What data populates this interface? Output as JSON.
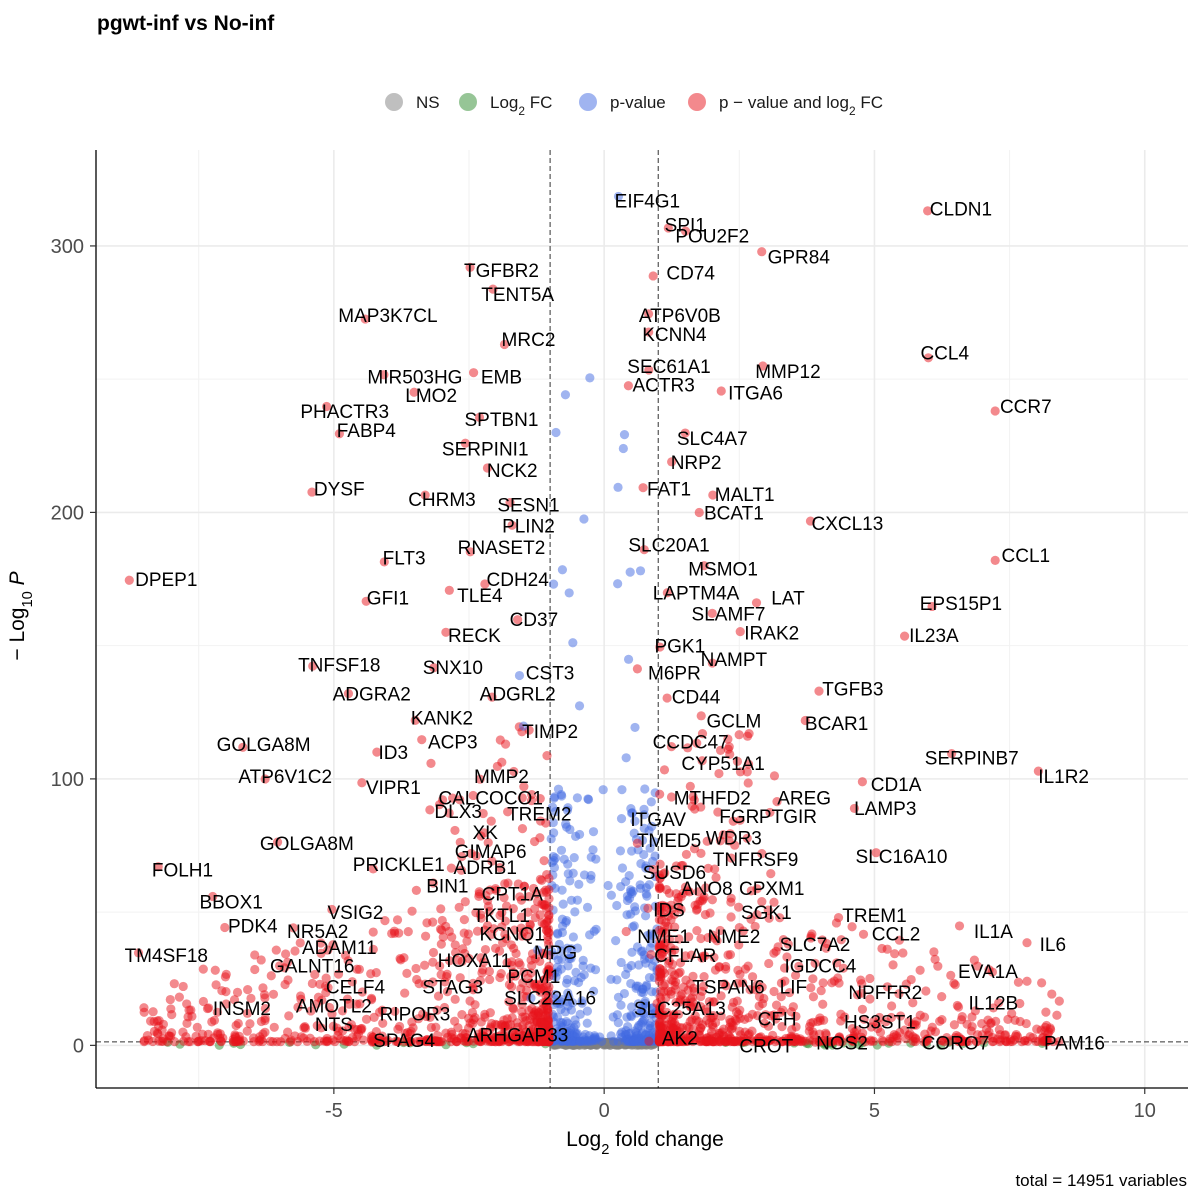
{
  "chart_data": {
    "type": "scatter",
    "title": "pgwt-inf vs No-inf",
    "xlabel_parts": [
      "Log",
      "2",
      " fold change"
    ],
    "ylabel_parts": [
      "− Log",
      "10",
      " P"
    ],
    "caption": "total = 14951 variables",
    "xlim": [
      -9.4,
      10.8
    ],
    "ylim": [
      -16,
      336
    ],
    "xticks": [
      -5,
      0,
      5,
      10
    ],
    "xtick_labels": [
      "-5",
      "0",
      "5",
      "10"
    ],
    "yticks": [
      0,
      100,
      200,
      300
    ],
    "ytick_labels": [
      "0",
      "100",
      "200",
      "300"
    ],
    "fc_cutoff": [
      -1,
      1
    ],
    "p_cutoff_y": 1.3,
    "grid": true,
    "legend_position": "top",
    "legend": [
      {
        "key": "NS",
        "parts": [
          "NS"
        ],
        "color": "#808080"
      },
      {
        "key": "FC",
        "parts": [
          "Log",
          "2",
          " FC"
        ],
        "color": "#2e8b2e"
      },
      {
        "key": "P",
        "parts": [
          "p-value"
        ],
        "color": "#4169e1"
      },
      {
        "key": "PFC",
        "parts": [
          "p − value and log",
          "2",
          " FC"
        ],
        "color": "#e8141c"
      }
    ],
    "colors": {
      "NS": "#808080",
      "FC": "#2e8b2e",
      "P": "#4169e1",
      "PFC": "#e8141c"
    },
    "labels": [
      {
        "t": "EIF4G1",
        "x": 0.8,
        "y": 317
      },
      {
        "t": "CLDN1",
        "x": 6.6,
        "y": 314
      },
      {
        "t": "SPI1",
        "x": 1.5,
        "y": 308
      },
      {
        "t": "POU2F2",
        "x": 2.0,
        "y": 304
      },
      {
        "t": "GPR84",
        "x": 3.6,
        "y": 296
      },
      {
        "t": "TGFBR2",
        "x": -1.9,
        "y": 291
      },
      {
        "t": "CD74",
        "x": 1.6,
        "y": 290
      },
      {
        "t": "TENT5A",
        "x": -1.6,
        "y": 282
      },
      {
        "t": "MAP3K7CL",
        "x": -4.0,
        "y": 274
      },
      {
        "t": "ATP6V0B",
        "x": 1.4,
        "y": 274
      },
      {
        "t": "KCNN4",
        "x": 1.3,
        "y": 267
      },
      {
        "t": "MRC2",
        "x": -1.4,
        "y": 265
      },
      {
        "t": "CCL4",
        "x": 6.3,
        "y": 260
      },
      {
        "t": "SEC61A1",
        "x": 1.2,
        "y": 255
      },
      {
        "t": "MIR503HG",
        "x": -3.5,
        "y": 251
      },
      {
        "t": "EMB",
        "x": -1.9,
        "y": 251
      },
      {
        "t": "MMP12",
        "x": 3.4,
        "y": 253
      },
      {
        "t": "ACTR3",
        "x": 1.1,
        "y": 248
      },
      {
        "t": "ITGA6",
        "x": 2.8,
        "y": 245
      },
      {
        "t": "LMO2",
        "x": -3.2,
        "y": 244
      },
      {
        "t": "PHACTR3",
        "x": -4.8,
        "y": 238
      },
      {
        "t": "CCR7",
        "x": 7.8,
        "y": 240
      },
      {
        "t": "SPTBN1",
        "x": -1.9,
        "y": 235
      },
      {
        "t": "FABP4",
        "x": -4.4,
        "y": 231
      },
      {
        "t": "SLC4A7",
        "x": 2.0,
        "y": 228
      },
      {
        "t": "SERPINI1",
        "x": -2.2,
        "y": 224
      },
      {
        "t": "NRP2",
        "x": 1.7,
        "y": 219
      },
      {
        "t": "NCK2",
        "x": -1.7,
        "y": 216
      },
      {
        "t": "FAT1",
        "x": 1.2,
        "y": 209
      },
      {
        "t": "DYSF",
        "x": -4.9,
        "y": 209
      },
      {
        "t": "MALT1",
        "x": 2.6,
        "y": 207
      },
      {
        "t": "CHRM3",
        "x": -3.0,
        "y": 205
      },
      {
        "t": "SESN1",
        "x": -1.4,
        "y": 203
      },
      {
        "t": "BCAT1",
        "x": 2.4,
        "y": 200
      },
      {
        "t": "CXCL13",
        "x": 4.5,
        "y": 196
      },
      {
        "t": "PLIN2",
        "x": -1.4,
        "y": 195
      },
      {
        "t": "RNASET2",
        "x": -1.9,
        "y": 187
      },
      {
        "t": "SLC20A1",
        "x": 1.2,
        "y": 188
      },
      {
        "t": "CCL1",
        "x": 7.8,
        "y": 184
      },
      {
        "t": "FLT3",
        "x": -3.7,
        "y": 183
      },
      {
        "t": "MSMO1",
        "x": 2.2,
        "y": 179
      },
      {
        "t": "DPEP1",
        "x": -8.1,
        "y": 175
      },
      {
        "t": "CDH24",
        "x": -1.6,
        "y": 175
      },
      {
        "t": "LAPTM4A",
        "x": 1.7,
        "y": 170
      },
      {
        "t": "LAT",
        "x": 3.4,
        "y": 168
      },
      {
        "t": "GFI1",
        "x": -4.0,
        "y": 168
      },
      {
        "t": "TLE4",
        "x": -2.3,
        "y": 169
      },
      {
        "t": "EPS15P1",
        "x": 6.6,
        "y": 166
      },
      {
        "t": "SLAMF7",
        "x": 2.3,
        "y": 162
      },
      {
        "t": "CD37",
        "x": -1.3,
        "y": 160
      },
      {
        "t": "IRAK2",
        "x": 3.1,
        "y": 155
      },
      {
        "t": "IL23A",
        "x": 6.1,
        "y": 154
      },
      {
        "t": "RECK",
        "x": -2.4,
        "y": 154
      },
      {
        "t": "PGK1",
        "x": 1.4,
        "y": 150
      },
      {
        "t": "NAMPT",
        "x": 2.4,
        "y": 145
      },
      {
        "t": "TNFSF18",
        "x": -4.9,
        "y": 143
      },
      {
        "t": "SNX10",
        "x": -2.8,
        "y": 142
      },
      {
        "t": "CST3",
        "x": -1.0,
        "y": 140
      },
      {
        "t": "M6PR",
        "x": 1.3,
        "y": 140
      },
      {
        "t": "TGFB3",
        "x": 4.6,
        "y": 134
      },
      {
        "t": "ADGRA2",
        "x": -4.3,
        "y": 132
      },
      {
        "t": "ADGRL2",
        "x": -1.6,
        "y": 132
      },
      {
        "t": "CD44",
        "x": 1.7,
        "y": 131
      },
      {
        "t": "KANK2",
        "x": -3.0,
        "y": 123
      },
      {
        "t": "GCLM",
        "x": 2.4,
        "y": 122
      },
      {
        "t": "BCAR1",
        "x": 4.3,
        "y": 121
      },
      {
        "t": "TIMP2",
        "x": -1.0,
        "y": 118
      },
      {
        "t": "ACP3",
        "x": -2.8,
        "y": 114
      },
      {
        "t": "CCDC47",
        "x": 1.6,
        "y": 114
      },
      {
        "t": "GOLGA8M",
        "x": -6.3,
        "y": 113
      },
      {
        "t": "ID3",
        "x": -3.9,
        "y": 110
      },
      {
        "t": "SERPINB7",
        "x": 6.8,
        "y": 108
      },
      {
        "t": "CYP51A1",
        "x": 2.2,
        "y": 106
      },
      {
        "t": "ATP6V1C2",
        "x": -5.9,
        "y": 101
      },
      {
        "t": "MMP2",
        "x": -1.9,
        "y": 101
      },
      {
        "t": "IL1R2",
        "x": 8.5,
        "y": 101
      },
      {
        "t": "CD1A",
        "x": 5.4,
        "y": 98
      },
      {
        "t": "VIPR1",
        "x": -3.9,
        "y": 97
      },
      {
        "t": "CALCOCO1",
        "x": -2.1,
        "y": 93
      },
      {
        "t": "MTHFD2",
        "x": 2.0,
        "y": 93
      },
      {
        "t": "AREG",
        "x": 3.7,
        "y": 93
      },
      {
        "t": "LAMP3",
        "x": 5.2,
        "y": 89
      },
      {
        "t": "DLX3",
        "x": -2.7,
        "y": 88
      },
      {
        "t": "TREM2",
        "x": -1.2,
        "y": 87
      },
      {
        "t": "ITGAV",
        "x": 1.0,
        "y": 85
      },
      {
        "t": "FGR",
        "x": 2.5,
        "y": 86
      },
      {
        "t": "PTGIR",
        "x": 3.4,
        "y": 86
      },
      {
        "t": "XK",
        "x": -2.2,
        "y": 80
      },
      {
        "t": "TMED5",
        "x": 1.2,
        "y": 77
      },
      {
        "t": "WDR3",
        "x": 2.4,
        "y": 78
      },
      {
        "t": "GOLGA8M",
        "x": -5.5,
        "y": 76
      },
      {
        "t": "GIMAP6",
        "x": -2.1,
        "y": 73
      },
      {
        "t": "SLC16A10",
        "x": 5.5,
        "y": 71
      },
      {
        "t": "TNFRSF9",
        "x": 2.8,
        "y": 70
      },
      {
        "t": "PRICKLE1",
        "x": -3.8,
        "y": 68
      },
      {
        "t": "ADRB1",
        "x": -2.2,
        "y": 67
      },
      {
        "t": "FOLH1",
        "x": -7.8,
        "y": 66
      },
      {
        "t": "SUSD6",
        "x": 1.3,
        "y": 65
      },
      {
        "t": "BIN1",
        "x": -2.9,
        "y": 60
      },
      {
        "t": "ANO8",
        "x": 1.9,
        "y": 59
      },
      {
        "t": "CPXM1",
        "x": 3.1,
        "y": 59
      },
      {
        "t": "CPT1A",
        "x": -1.7,
        "y": 57
      },
      {
        "t": "BBOX1",
        "x": -6.9,
        "y": 54
      },
      {
        "t": "IDS",
        "x": 1.2,
        "y": 51
      },
      {
        "t": "SGK1",
        "x": 3.0,
        "y": 50
      },
      {
        "t": "TREM1",
        "x": 5.0,
        "y": 49
      },
      {
        "t": "VSIG2",
        "x": -4.6,
        "y": 50
      },
      {
        "t": "TKTL1",
        "x": -1.9,
        "y": 49
      },
      {
        "t": "PDK4",
        "x": -6.5,
        "y": 45
      },
      {
        "t": "IL1A",
        "x": 7.2,
        "y": 43
      },
      {
        "t": "NR5A2",
        "x": -5.3,
        "y": 43
      },
      {
        "t": "KCNQ1",
        "x": -1.7,
        "y": 42
      },
      {
        "t": "NME1",
        "x": 1.1,
        "y": 41
      },
      {
        "t": "NME2",
        "x": 2.4,
        "y": 41
      },
      {
        "t": "CCL2",
        "x": 5.4,
        "y": 42
      },
      {
        "t": "SLC7A2",
        "x": 3.9,
        "y": 38
      },
      {
        "t": "ADAM11",
        "x": -4.9,
        "y": 37
      },
      {
        "t": "IL6",
        "x": 8.3,
        "y": 38
      },
      {
        "t": "MPG",
        "x": -0.9,
        "y": 35
      },
      {
        "t": "TM4SF18",
        "x": -8.1,
        "y": 34
      },
      {
        "t": "CFLAR",
        "x": 1.5,
        "y": 34
      },
      {
        "t": "HOXA11",
        "x": -2.4,
        "y": 32
      },
      {
        "t": "GALNT16",
        "x": -5.4,
        "y": 30
      },
      {
        "t": "IGDCC4",
        "x": 4.0,
        "y": 30
      },
      {
        "t": "EVA1A",
        "x": 7.1,
        "y": 28
      },
      {
        "t": "PCM1",
        "x": -1.3,
        "y": 26
      },
      {
        "t": "TSPAN6",
        "x": 2.3,
        "y": 22
      },
      {
        "t": "LIF",
        "x": 3.5,
        "y": 22
      },
      {
        "t": "CELF4",
        "x": -4.6,
        "y": 22
      },
      {
        "t": "STAG3",
        "x": -2.8,
        "y": 22
      },
      {
        "t": "NPFFR2",
        "x": 5.2,
        "y": 20
      },
      {
        "t": "SLC22A16",
        "x": -1.0,
        "y": 18
      },
      {
        "t": "IL12B",
        "x": 7.2,
        "y": 16
      },
      {
        "t": "AMOTL2",
        "x": -5.0,
        "y": 15
      },
      {
        "t": "INSM2",
        "x": -6.7,
        "y": 14
      },
      {
        "t": "RIPOR3",
        "x": -3.5,
        "y": 12
      },
      {
        "t": "SLC25A13",
        "x": 1.4,
        "y": 14
      },
      {
        "t": "HS3ST1",
        "x": 5.1,
        "y": 9
      },
      {
        "t": "CFH",
        "x": 3.2,
        "y": 10
      },
      {
        "t": "NTS",
        "x": -5.0,
        "y": 8
      },
      {
        "t": "AK2",
        "x": 1.4,
        "y": 3
      },
      {
        "t": "ARHGAP33",
        "x": -1.6,
        "y": 4
      },
      {
        "t": "SPAG4",
        "x": -3.7,
        "y": 2
      },
      {
        "t": "CROT",
        "x": 3.0,
        "y": 0
      },
      {
        "t": "NOS2",
        "x": 4.4,
        "y": 1
      },
      {
        "t": "CORO7",
        "x": 6.5,
        "y": 1
      },
      {
        "t": "PAM16",
        "x": 8.7,
        "y": 1
      }
    ]
  }
}
